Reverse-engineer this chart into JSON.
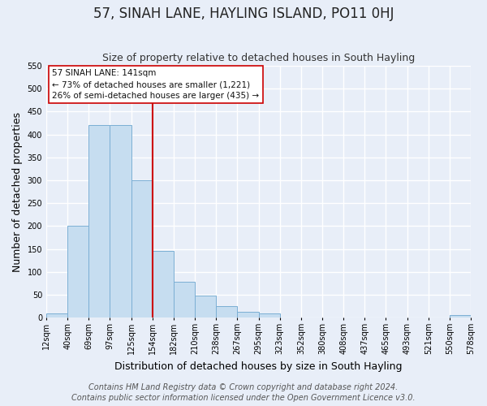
{
  "title": "57, SINAH LANE, HAYLING ISLAND, PO11 0HJ",
  "subtitle": "Size of property relative to detached houses in South Hayling",
  "xlabel": "Distribution of detached houses by size in South Hayling",
  "ylabel": "Number of detached properties",
  "bar_values": [
    10,
    200,
    420,
    420,
    300,
    145,
    78,
    48,
    25,
    13,
    10,
    0,
    0,
    0,
    0,
    0,
    0,
    0,
    0,
    5
  ],
  "bar_labels": [
    "12sqm",
    "40sqm",
    "69sqm",
    "97sqm",
    "125sqm",
    "154sqm",
    "182sqm",
    "210sqm",
    "238sqm",
    "267sqm",
    "295sqm",
    "323sqm",
    "352sqm",
    "380sqm",
    "408sqm",
    "437sqm",
    "465sqm",
    "493sqm",
    "521sqm",
    "550sqm",
    "578sqm"
  ],
  "bar_color": "#c6ddf0",
  "bar_edge_color": "#7bafd4",
  "ylim": [
    0,
    550
  ],
  "yticks": [
    0,
    50,
    100,
    150,
    200,
    250,
    300,
    350,
    400,
    450,
    500,
    550
  ],
  "vline_color": "#cc0000",
  "annotation_text": "57 SINAH LANE: 141sqm\n← 73% of detached houses are smaller (1,221)\n26% of semi-detached houses are larger (435) →",
  "footer_line1": "Contains HM Land Registry data © Crown copyright and database right 2024.",
  "footer_line2": "Contains public sector information licensed under the Open Government Licence v3.0.",
  "background_color": "#e8eef8",
  "plot_bg_color": "#e8eef8",
  "grid_color": "#ffffff",
  "title_fontsize": 12,
  "subtitle_fontsize": 9,
  "axis_label_fontsize": 9,
  "tick_fontsize": 7,
  "footer_fontsize": 7
}
